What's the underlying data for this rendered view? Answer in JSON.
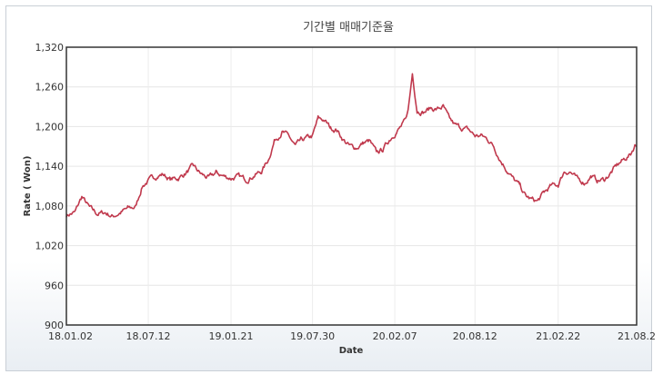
{
  "chart_data": {
    "type": "line",
    "title": "기간별 매매기준율",
    "xlabel": "Date",
    "ylabel": "Rate ( Won)",
    "ylim": [
      900,
      1320
    ],
    "y_ticks": [
      "1,320",
      "1,260",
      "1,200",
      "1,140",
      "1,080",
      "1,020",
      "960",
      "900"
    ],
    "y_tick_values": [
      1320,
      1260,
      1200,
      1140,
      1080,
      1020,
      960,
      900
    ],
    "x_ticks": [
      "18.01.02",
      "18.07.12",
      "19.01.21",
      "19.07.30",
      "20.02.07",
      "20.08.12",
      "21.02.22",
      "21.08.2"
    ],
    "x_tick_values": [
      "2018-01-02",
      "2018-07-12",
      "2019-01-21",
      "2019-07-30",
      "2020-02-07",
      "2020-08-12",
      "2021-02-22",
      "2021-08-24"
    ],
    "xlim": [
      "2018-01-02",
      "2021-08-24"
    ],
    "grid": true,
    "legend": "none",
    "series": [
      {
        "color": "#c0394d",
        "points": [
          [
            "2018-01-02",
            1066
          ],
          [
            "2018-01-22",
            1070
          ],
          [
            "2018-02-07",
            1094
          ],
          [
            "2018-02-25",
            1077
          ],
          [
            "2018-03-15",
            1068
          ],
          [
            "2018-04-02",
            1070
          ],
          [
            "2018-04-20",
            1064
          ],
          [
            "2018-05-08",
            1070
          ],
          [
            "2018-05-25",
            1076
          ],
          [
            "2018-06-12",
            1078
          ],
          [
            "2018-06-28",
            1110
          ],
          [
            "2018-07-12",
            1118
          ],
          [
            "2018-07-30",
            1125
          ],
          [
            "2018-08-15",
            1128
          ],
          [
            "2018-09-01",
            1120
          ],
          [
            "2018-09-20",
            1122
          ],
          [
            "2018-10-08",
            1130
          ],
          [
            "2018-10-25",
            1140
          ],
          [
            "2018-11-12",
            1128
          ],
          [
            "2018-11-30",
            1122
          ],
          [
            "2018-12-17",
            1130
          ],
          [
            "2019-01-04",
            1125
          ],
          [
            "2019-01-21",
            1122
          ],
          [
            "2019-02-08",
            1124
          ],
          [
            "2019-02-26",
            1120
          ],
          [
            "2019-03-15",
            1126
          ],
          [
            "2019-04-02",
            1132
          ],
          [
            "2019-04-18",
            1150
          ],
          [
            "2019-05-03",
            1180
          ],
          [
            "2019-05-20",
            1192
          ],
          [
            "2019-06-05",
            1185
          ],
          [
            "2019-06-20",
            1170
          ],
          [
            "2019-07-03",
            1178
          ],
          [
            "2019-07-15",
            1182
          ],
          [
            "2019-07-30",
            1185
          ],
          [
            "2019-08-12",
            1212
          ],
          [
            "2019-08-26",
            1210
          ],
          [
            "2019-09-10",
            1198
          ],
          [
            "2019-09-25",
            1195
          ],
          [
            "2019-10-10",
            1180
          ],
          [
            "2019-10-25",
            1170
          ],
          [
            "2019-11-10",
            1168
          ],
          [
            "2019-11-25",
            1175
          ],
          [
            "2019-12-10",
            1178
          ],
          [
            "2019-12-26",
            1160
          ],
          [
            "2020-01-10",
            1165
          ],
          [
            "2020-01-25",
            1180
          ],
          [
            "2020-02-07",
            1190
          ],
          [
            "2020-02-22",
            1200
          ],
          [
            "2020-03-05",
            1210
          ],
          [
            "2020-03-12",
            1240
          ],
          [
            "2020-03-19",
            1280
          ],
          [
            "2020-03-30",
            1225
          ],
          [
            "2020-04-15",
            1222
          ],
          [
            "2020-05-01",
            1228
          ],
          [
            "2020-05-15",
            1226
          ],
          [
            "2020-05-30",
            1230
          ],
          [
            "2020-06-12",
            1212
          ],
          [
            "2020-06-26",
            1202
          ],
          [
            "2020-07-12",
            1198
          ],
          [
            "2020-07-28",
            1195
          ],
          [
            "2020-08-12",
            1186
          ],
          [
            "2020-08-28",
            1186
          ],
          [
            "2020-09-12",
            1180
          ],
          [
            "2020-09-25",
            1170
          ],
          [
            "2020-10-10",
            1150
          ],
          [
            "2020-10-25",
            1135
          ],
          [
            "2020-11-10",
            1120
          ],
          [
            "2020-11-25",
            1110
          ],
          [
            "2020-12-08",
            1095
          ],
          [
            "2020-12-20",
            1090
          ],
          [
            "2021-01-05",
            1087
          ],
          [
            "2021-01-20",
            1100
          ],
          [
            "2021-02-05",
            1110
          ],
          [
            "2021-02-22",
            1112
          ],
          [
            "2021-03-08",
            1132
          ],
          [
            "2021-03-22",
            1132
          ],
          [
            "2021-04-08",
            1120
          ],
          [
            "2021-04-25",
            1115
          ],
          [
            "2021-05-10",
            1125
          ],
          [
            "2021-05-25",
            1118
          ],
          [
            "2021-06-10",
            1120
          ],
          [
            "2021-06-25",
            1130
          ],
          [
            "2021-07-10",
            1142
          ],
          [
            "2021-07-25",
            1150
          ],
          [
            "2021-08-10",
            1158
          ],
          [
            "2021-08-20",
            1172
          ],
          [
            "2021-08-24",
            1170
          ]
        ]
      }
    ]
  }
}
